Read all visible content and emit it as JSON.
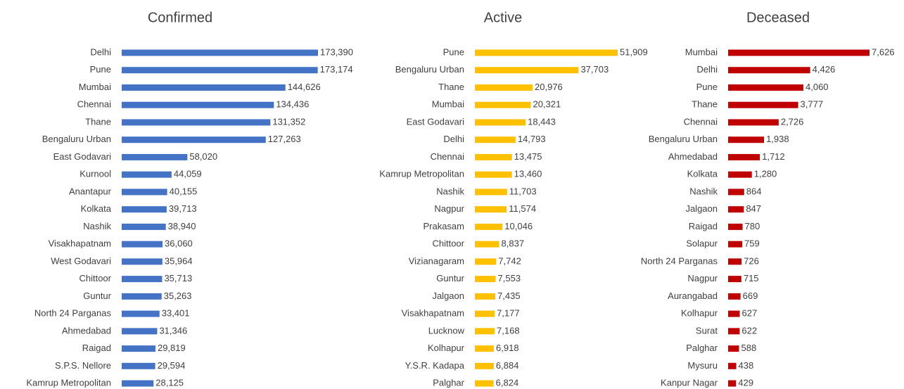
{
  "chart_data": [
    {
      "type": "bar",
      "orientation": "horizontal",
      "title": "Confirmed",
      "color": "#4472c4",
      "categories": [
        "Delhi",
        "Pune",
        "Mumbai",
        "Chennai",
        "Thane",
        "Bengaluru Urban",
        "East Godavari",
        "Kurnool",
        "Anantapur",
        "Kolkata",
        "Nashik",
        "Visakhapatnam",
        "West Godavari",
        "Chittoor",
        "Guntur",
        "North 24 Parganas",
        "Ahmedabad",
        "Raigad",
        "S.P.S. Nellore",
        "Kamrup Metropolitan"
      ],
      "values": [
        173390,
        173174,
        144626,
        134436,
        131352,
        127263,
        58020,
        44059,
        40155,
        39713,
        38940,
        36060,
        35964,
        35713,
        35263,
        33401,
        31346,
        29819,
        29594,
        28125
      ],
      "value_labels": [
        "173,390",
        "173,174",
        "144,626",
        "134,436",
        "131,352",
        "127,263",
        "58,020",
        "44,059",
        "40,155",
        "39,713",
        "38,940",
        "36,060",
        "35,964",
        "35,713",
        "35,263",
        "33,401",
        "31,346",
        "29,819",
        "29,594",
        "28,125"
      ]
    },
    {
      "type": "bar",
      "orientation": "horizontal",
      "title": "Active",
      "color": "#ffc000",
      "categories": [
        "Pune",
        "Bengaluru Urban",
        "Thane",
        "Mumbai",
        "East Godavari",
        "Delhi",
        "Chennai",
        "Kamrup Metropolitan",
        "Nashik",
        "Nagpur",
        "Prakasam",
        "Chittoor",
        "Vizianagaram",
        "Guntur",
        "Jalgaon",
        "Visakhapatnam",
        "Lucknow",
        "Kolhapur",
        "Y.S.R. Kadapa",
        "Palghar"
      ],
      "values": [
        51909,
        37703,
        20976,
        20321,
        18443,
        14793,
        13475,
        13460,
        11703,
        11574,
        10046,
        8837,
        7742,
        7553,
        7435,
        7177,
        7168,
        6918,
        6884,
        6824
      ],
      "value_labels": [
        "51,909",
        "37,703",
        "20,976",
        "20,321",
        "18,443",
        "14,793",
        "13,475",
        "13,460",
        "11,703",
        "11,574",
        "10,046",
        "8,837",
        "7,742",
        "7,553",
        "7,435",
        "7,177",
        "7,168",
        "6,918",
        "6,884",
        "6,824"
      ]
    },
    {
      "type": "bar",
      "orientation": "horizontal",
      "title": "Deceased",
      "color": "#c00000",
      "categories": [
        "Mumbai",
        "Delhi",
        "Pune",
        "Thane",
        "Chennai",
        "Bengaluru Urban",
        "Ahmedabad",
        "Kolkata",
        "Nashik",
        "Jalgaon",
        "Raigad",
        "Solapur",
        "North 24 Parganas",
        "Nagpur",
        "Aurangabad",
        "Kolhapur",
        "Surat",
        "Palghar",
        "Mysuru",
        "Kanpur Nagar"
      ],
      "values": [
        7626,
        4426,
        4060,
        3777,
        2726,
        1938,
        1712,
        1280,
        864,
        847,
        780,
        759,
        726,
        715,
        669,
        627,
        622,
        588,
        438,
        429
      ],
      "value_labels": [
        "7,626",
        "4,426",
        "4,060",
        "3,777",
        "2,726",
        "1,938",
        "1,712",
        "1,280",
        "864",
        "847",
        "780",
        "759",
        "726",
        "715",
        "669",
        "627",
        "622",
        "588",
        "438",
        "429"
      ]
    }
  ]
}
